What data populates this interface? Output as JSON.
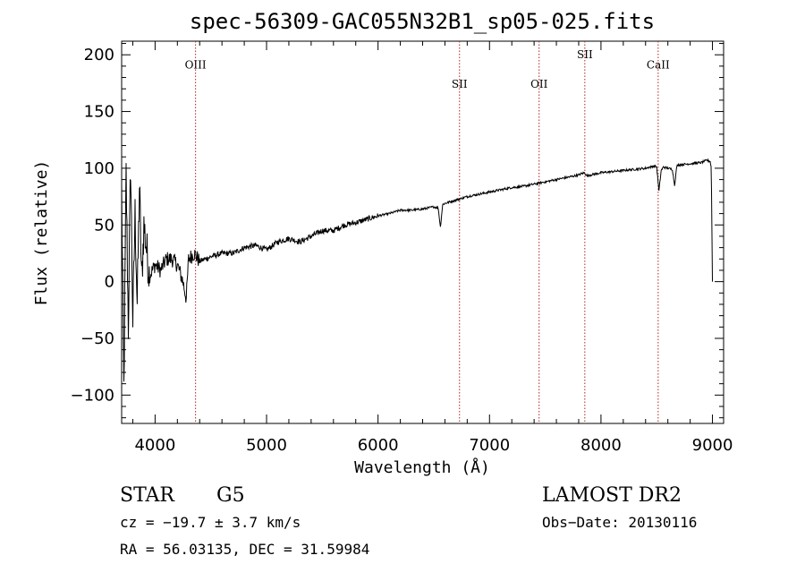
{
  "chart_data": {
    "type": "line",
    "title": "spec-56309-GAC055N32B1_sp05-025.fits",
    "xlabel": "Wavelength (Å)",
    "ylabel": "Flux (relative)",
    "xlim": [
      3700,
      9100
    ],
    "ylim": [
      -125,
      212
    ],
    "x_ticks": [
      4000,
      5000,
      6000,
      7000,
      8000,
      9000
    ],
    "y_ticks": [
      -100,
      -50,
      0,
      50,
      100,
      150,
      200
    ],
    "grid": false,
    "series": [
      {
        "x": [
          3700,
          3720,
          3740,
          3760,
          3780,
          3800,
          3820,
          3840,
          3860,
          3880,
          3900,
          3950,
          4000,
          4050,
          4100,
          4150,
          4200,
          4250,
          4280,
          4300,
          4350,
          4400,
          4500,
          4600,
          4700,
          4800,
          4900,
          5000,
          5100,
          5200,
          5300,
          5400,
          5500,
          5600,
          5700,
          5800,
          5900,
          6000,
          6100,
          6200,
          6300,
          6400,
          6500,
          6540,
          6560,
          6580,
          6600,
          6700,
          6800,
          6900,
          7000,
          7100,
          7200,
          7300,
          7400,
          7500,
          7600,
          7700,
          7800,
          7820,
          7850,
          7880,
          7900,
          8000,
          8100,
          8200,
          8300,
          8400,
          8480,
          8500,
          8520,
          8540,
          8560,
          8600,
          8640,
          8660,
          8680,
          8700,
          8800,
          8900,
          8950,
          8980,
          8990,
          9000
        ],
        "y": [
          80,
          -95,
          95,
          -40,
          105,
          -35,
          60,
          -20,
          85,
          0,
          50,
          5,
          15,
          10,
          20,
          20,
          15,
          0,
          -15,
          20,
          25,
          18,
          22,
          25,
          25,
          30,
          32,
          28,
          35,
          38,
          35,
          40,
          45,
          45,
          50,
          52,
          55,
          58,
          60,
          63,
          63,
          64,
          66,
          65,
          48,
          68,
          69,
          72,
          75,
          77,
          79,
          81,
          83,
          84,
          86,
          88,
          90,
          92,
          94,
          95,
          96,
          93,
          94,
          96,
          97,
          98,
          99,
          100,
          102,
          101,
          80,
          98,
          101,
          100,
          99,
          85,
          102,
          103,
          104,
          105,
          107,
          106,
          100,
          0
        ]
      }
    ],
    "annotations": [
      {
        "label": "OIII",
        "x": 4363,
        "label_y": 188
      },
      {
        "label": "SII",
        "x": 6731,
        "label_y": 171
      },
      {
        "label": "OII",
        "x": 7445,
        "label_y": 171
      },
      {
        "label": "SII",
        "x": 7855,
        "label_y": 197
      },
      {
        "label": "CaII",
        "x": 8513,
        "label_y": 188
      }
    ],
    "line_color": "#000000",
    "annotation_color": "#b22222"
  },
  "footer": {
    "object_type": "STAR",
    "subclass": "G5",
    "survey": "LAMOST DR2",
    "cz": "cz = −19.7 ± 3.7 km/s",
    "obs_date": "Obs−Date: 20130116",
    "coords": "RA =  56.03135, DEC =  31.59984"
  }
}
